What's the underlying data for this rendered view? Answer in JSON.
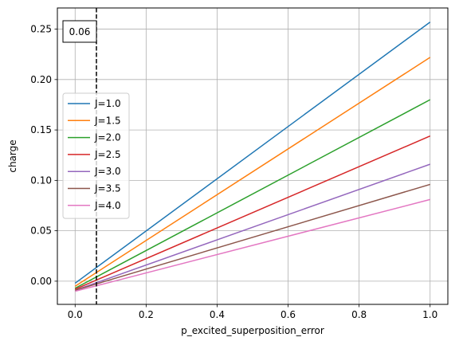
{
  "chart_data": {
    "type": "line",
    "xlabel": "p_excited_superposition_error",
    "ylabel": "charge",
    "xlim": [
      -0.05,
      1.05
    ],
    "ylim": [
      -0.023,
      0.271
    ],
    "xticks": [
      0.0,
      0.2,
      0.4,
      0.6,
      0.8,
      1.0
    ],
    "xtick_labels": [
      "0.0",
      "0.2",
      "0.4",
      "0.6",
      "0.8",
      "1.0"
    ],
    "yticks": [
      0.0,
      0.05,
      0.1,
      0.15,
      0.2,
      0.25
    ],
    "ytick_labels": [
      "0.00",
      "0.05",
      "0.10",
      "0.15",
      "0.20",
      "0.25"
    ],
    "grid": true,
    "legend_position": "center-left",
    "vline": {
      "x": 0.06,
      "style": "dashed",
      "color": "#000000"
    },
    "annotation": {
      "text": "0.06",
      "position": "top-left"
    },
    "x": [
      0.0,
      1.0
    ],
    "series": [
      {
        "name": "J=1.0",
        "color": "#1f77b4",
        "values": [
          -0.002,
          0.257
        ]
      },
      {
        "name": "J=1.5",
        "color": "#ff7f0e",
        "values": [
          -0.005,
          0.222
        ]
      },
      {
        "name": "J=2.0",
        "color": "#2ca02c",
        "values": [
          -0.007,
          0.18
        ]
      },
      {
        "name": "J=2.5",
        "color": "#d62728",
        "values": [
          -0.008,
          0.144
        ]
      },
      {
        "name": "J=3.0",
        "color": "#9467bd",
        "values": [
          -0.009,
          0.116
        ]
      },
      {
        "name": "J=3.5",
        "color": "#8c564b",
        "values": [
          -0.009,
          0.096
        ]
      },
      {
        "name": "J=4.0",
        "color": "#e377c2",
        "values": [
          -0.01,
          0.081
        ]
      }
    ]
  }
}
